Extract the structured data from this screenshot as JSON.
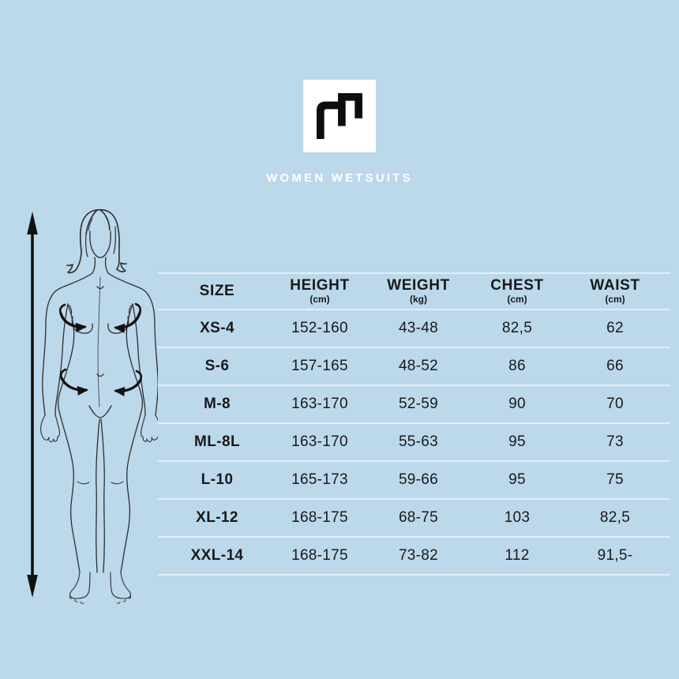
{
  "brand": {
    "title": "WOMEN WETSUITS",
    "logo_icon": "m-logo-icon"
  },
  "figure": {
    "illustration": "woman-body-outline-illustration",
    "height_arrow_icon": "height-double-arrow-icon",
    "chest_arrows_icon": "chest-measure-arrows-icon",
    "waist_arrows_icon": "waist-measure-arrows-icon"
  },
  "table": {
    "columns": [
      {
        "label": "SIZE",
        "unit": ""
      },
      {
        "label": "HEIGHT",
        "unit": "(cm)"
      },
      {
        "label": "WEIGHT",
        "unit": "(kg)"
      },
      {
        "label": "CHEST",
        "unit": "(cm)"
      },
      {
        "label": "WAIST",
        "unit": "(cm)"
      }
    ],
    "rows": [
      [
        "XS-4",
        "152-160",
        "43-48",
        "82,5",
        "62"
      ],
      [
        "S-6",
        "157-165",
        "48-52",
        "86",
        "66"
      ],
      [
        "M-8",
        "163-170",
        "52-59",
        "90",
        "70"
      ],
      [
        "ML-8L",
        "163-170",
        "55-63",
        "95",
        "73"
      ],
      [
        "L-10",
        "165-173",
        "59-66",
        "95",
        "75"
      ],
      [
        "XL-12",
        "168-175",
        "68-75",
        "103",
        "82,5"
      ],
      [
        "XXL-14",
        "168-175",
        "73-82",
        "112",
        "91,5-"
      ]
    ]
  },
  "chart_data": {
    "type": "table",
    "title": "WOMEN WETSUITS",
    "columns": [
      "SIZE",
      "HEIGHT (cm)",
      "WEIGHT (kg)",
      "CHEST (cm)",
      "WAIST (cm)"
    ],
    "rows": [
      [
        "XS-4",
        "152-160",
        "43-48",
        "82,5",
        "62"
      ],
      [
        "S-6",
        "157-165",
        "48-52",
        "86",
        "66"
      ],
      [
        "M-8",
        "163-170",
        "52-59",
        "90",
        "70"
      ],
      [
        "ML-8L",
        "163-170",
        "55-63",
        "95",
        "73"
      ],
      [
        "L-10",
        "165-173",
        "59-66",
        "95",
        "75"
      ],
      [
        "XL-12",
        "168-175",
        "68-75",
        "103",
        "82,5"
      ],
      [
        "XXL-14",
        "168-175",
        "73-82",
        "112",
        "91,5-"
      ]
    ]
  },
  "colors": {
    "background": "#bcd8eb",
    "text": "#191919",
    "separator_line": "#e3eff8",
    "logo_background": "#ffffff",
    "logo_glyph": "#0d0d0d",
    "title_text": "#ffffff",
    "figure_line": "#2e2e2e",
    "arrow": "#111111"
  }
}
